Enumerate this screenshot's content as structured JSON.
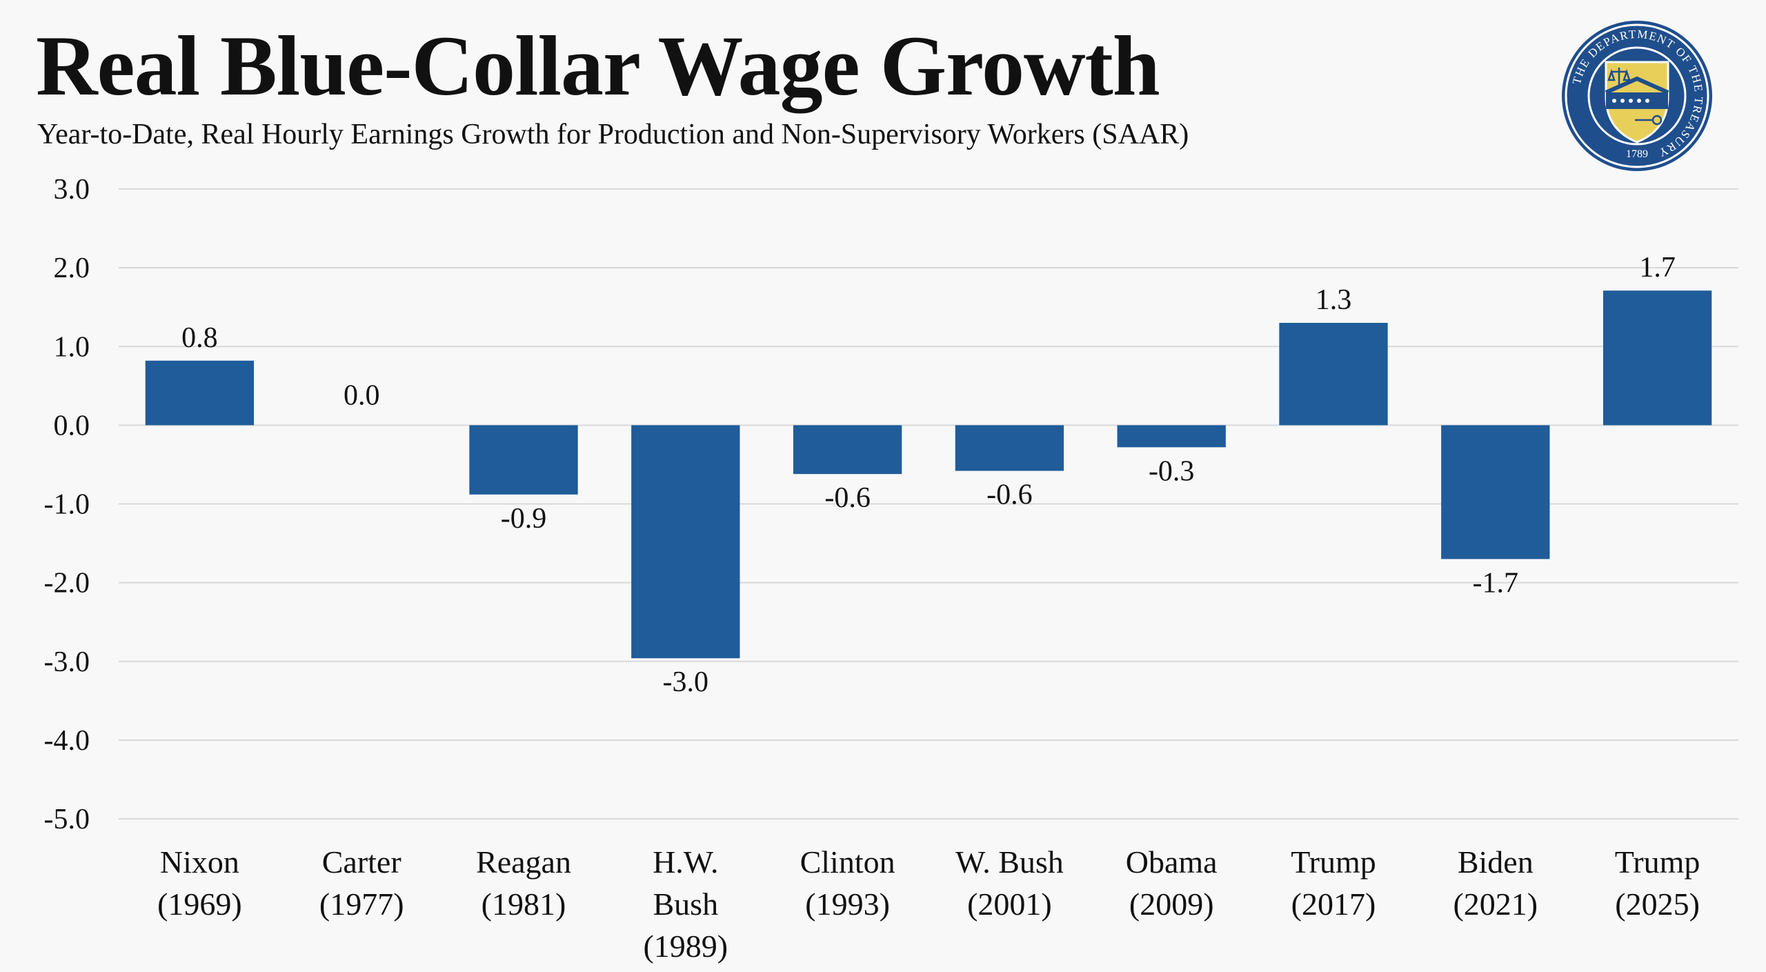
{
  "header": {
    "title": "Real Blue-Collar Wage Growth",
    "subtitle": "Year-to-Date, Real Hourly Earnings Growth for Production and Non-Supervisory Workers (SAAR)"
  },
  "seal": {
    "ring_text": "THE DEPARTMENT OF THE TREASURY",
    "year": "1789",
    "colors": {
      "navy": "#1f4e8c",
      "gold": "#e8cf5a",
      "outline": "#ffffff"
    }
  },
  "chart_data": {
    "type": "bar",
    "categories": [
      [
        "Nixon",
        "(1969)"
      ],
      [
        "Carter",
        "(1977)"
      ],
      [
        "Reagan",
        "(1981)"
      ],
      [
        "H.W.",
        "Bush",
        "(1989)"
      ],
      [
        "Clinton",
        "(1993)"
      ],
      [
        "W. Bush",
        "(2001)"
      ],
      [
        "Obama",
        "(2009)"
      ],
      [
        "Trump",
        "(2017)"
      ],
      [
        "Biden",
        "(2021)"
      ],
      [
        "Trump",
        "(2025)"
      ]
    ],
    "values": [
      0.82,
      0.0,
      -0.88,
      -2.96,
      -0.62,
      -0.58,
      -0.28,
      1.3,
      -1.7,
      1.71
    ],
    "value_labels": [
      "0.8",
      "0.0",
      "-0.9",
      "-3.0",
      "-0.6",
      "-0.6",
      "-0.3",
      "1.3",
      "-1.7",
      "1.7"
    ],
    "ylim": [
      -5.0,
      3.0
    ],
    "yticks": [
      3.0,
      2.0,
      1.0,
      0.0,
      -1.0,
      -2.0,
      -3.0,
      -4.0,
      -5.0
    ],
    "ytick_labels": [
      "3.0",
      "2.0",
      "1.0",
      "0.0",
      "-1.0",
      "-2.0",
      "-3.0",
      "-4.0",
      "-5.0"
    ],
    "grid": true,
    "bar_color": "#1f5c99",
    "grid_color": "#d9d9d9"
  }
}
